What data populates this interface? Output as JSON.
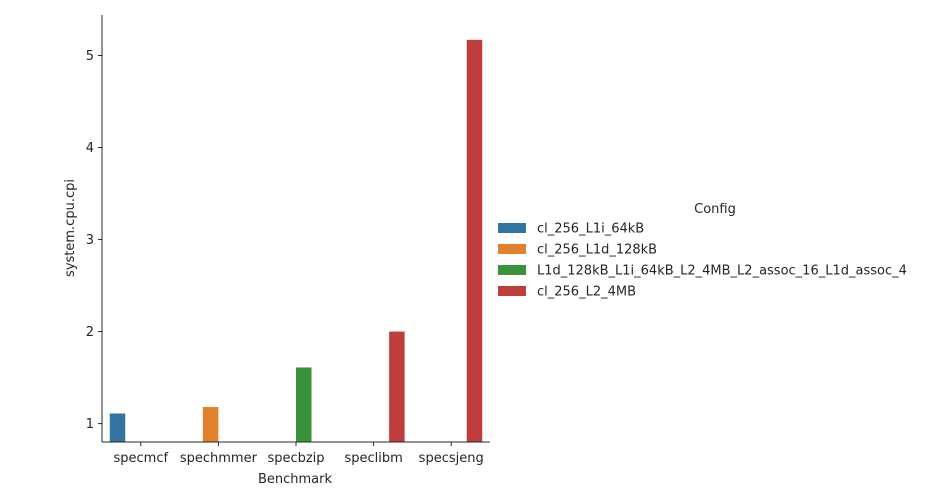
{
  "chart_data": {
    "type": "bar",
    "xlabel": "Benchmark",
    "ylabel": "system.cpu.cpi",
    "categories": [
      "specmcf",
      "spechmmer",
      "specbzip",
      "speclibm",
      "specsjeng"
    ],
    "ylim": [
      0.8,
      5.44
    ],
    "yticks": [
      1,
      2,
      3,
      4,
      5
    ],
    "grid": false,
    "legend": {
      "title": "Config",
      "placement": "center-right"
    },
    "series": [
      {
        "name": "cl_256_L1i_64kB",
        "color": "#3274a1",
        "values": [
          1.11,
          null,
          null,
          null,
          null
        ]
      },
      {
        "name": "cl_256_L1d_128kB",
        "color": "#e1812c",
        "values": [
          null,
          1.18,
          null,
          null,
          null
        ]
      },
      {
        "name": "L1d_128kB_L1i_64kB_L2_4MB_L2_assoc_16_L1d_assoc_4",
        "color": "#3a923a",
        "values": [
          null,
          null,
          1.61,
          null,
          null
        ]
      },
      {
        "name": "cl_256_L2_4MB",
        "color": "#c03d3e",
        "values": [
          null,
          null,
          null,
          2.0,
          5.17
        ]
      }
    ]
  }
}
